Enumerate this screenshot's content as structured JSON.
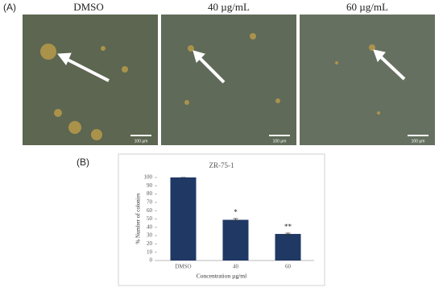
{
  "panels": {
    "a_label": "(A)",
    "b_label": "(B)",
    "images": [
      {
        "title": "DMSO",
        "scale": "100 µm"
      },
      {
        "title": "40 µg/mL",
        "scale": "100 µm"
      },
      {
        "title": "60 µg/mL",
        "scale": "100 µm"
      }
    ]
  },
  "chart_data": {
    "type": "bar",
    "title": "ZR-75-1",
    "x_label": "Concentration µg/ml",
    "y_label": "% Number of colonies",
    "categories": [
      "DMSO",
      "40",
      "60"
    ],
    "values": [
      100,
      49,
      32
    ],
    "errors": [
      0,
      1.5,
      1
    ],
    "annotations": [
      null,
      "*",
      "**"
    ],
    "color": "#1f3864",
    "ylim": [
      0,
      100
    ],
    "yticks": [
      0,
      10,
      20,
      30,
      40,
      50,
      60,
      70,
      80,
      90,
      100
    ]
  }
}
